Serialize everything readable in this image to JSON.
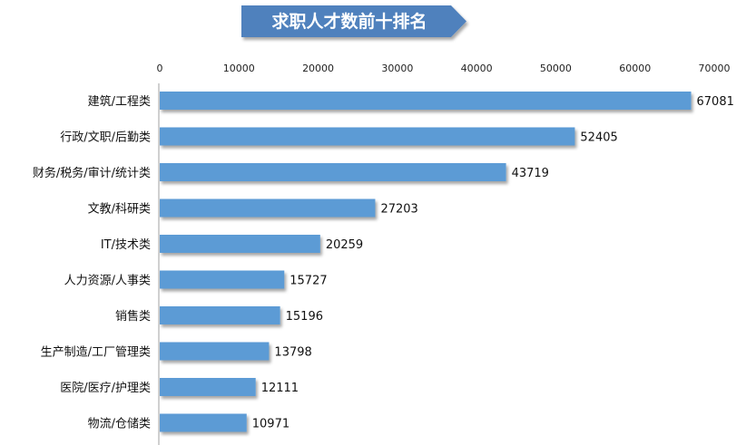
{
  "chart_data": {
    "type": "bar",
    "orientation": "horizontal",
    "title": "求职人才数前十排名",
    "categories": [
      "建筑/工程类",
      "行政/文职/后勤类",
      "财务/税务/审计/统计类",
      "文教/科研类",
      "IT/技术类",
      "人力资源/人事类",
      "销售类",
      "生产制造/工厂管理类",
      "医院/医疗/护理类",
      "物流/仓储类"
    ],
    "values": [
      67081,
      52405,
      43719,
      27203,
      20259,
      15727,
      15196,
      13798,
      12111,
      10971
    ],
    "xlim": [
      0,
      70000
    ],
    "ticks": [
      0,
      10000,
      20000,
      30000,
      40000,
      50000,
      60000,
      70000
    ],
    "axis_position": "top",
    "grid": false,
    "legend": "none",
    "data_labels": true,
    "colors": {
      "bar": "#5b9bd5",
      "title_banner": "#4f81bd"
    }
  }
}
